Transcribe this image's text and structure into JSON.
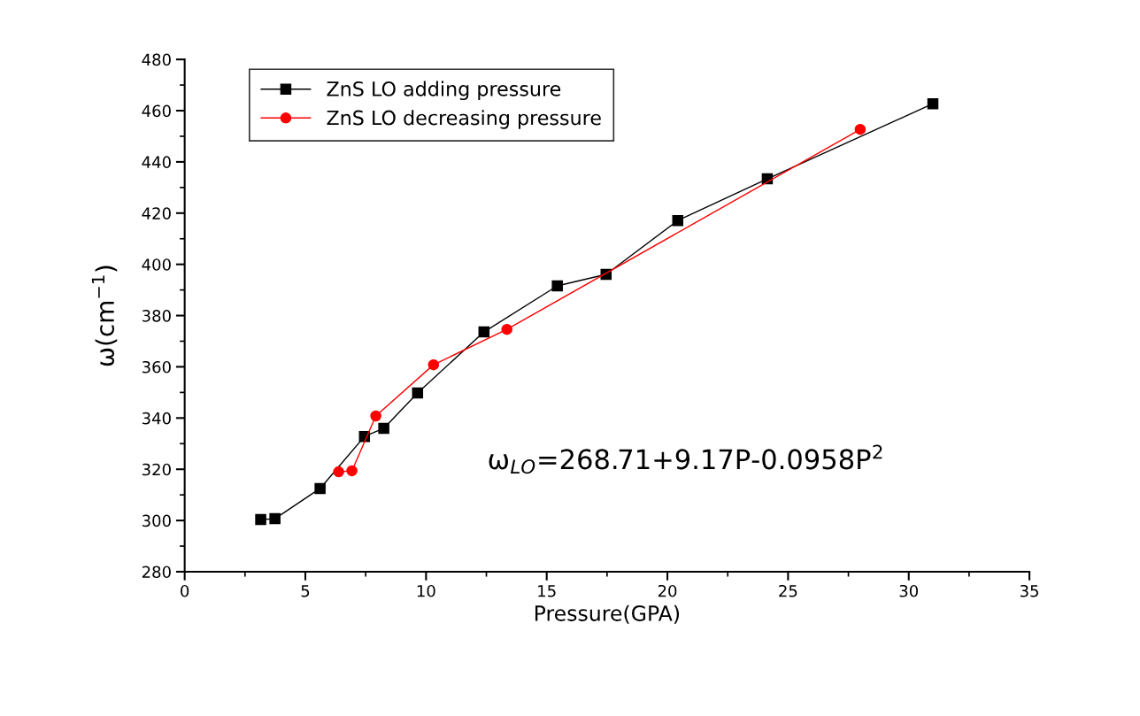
{
  "chart_data": {
    "type": "line",
    "xlabel": "Pressure(GPA)",
    "ylabel": "ω(cm$^{−1}$)",
    "xlim": [
      0,
      35
    ],
    "xticks": [
      0,
      5,
      10,
      15,
      20,
      25,
      30,
      35
    ],
    "ylim": [
      280,
      480
    ],
    "yticks": [
      280,
      300,
      320,
      340,
      360,
      380,
      400,
      420,
      440,
      460,
      480
    ],
    "grid": false,
    "legend": "top left",
    "line_style": "solid",
    "annotations": [
      {
        "text": "ω$_{LO}$=268.71+9.17P-0.0958P$^{2}$"
      }
    ],
    "series": [
      {
        "name": "ZnS LO adding pressure",
        "color": "#000000",
        "marker": "square",
        "x": [
          3.15,
          3.74,
          5.61,
          7.45,
          8.25,
          9.65,
          12.4,
          15.44,
          17.46,
          20.43,
          24.14,
          31.0
        ],
        "values": [
          300.4,
          300.7,
          312.5,
          332.8,
          336.0,
          349.8,
          373.6,
          391.6,
          396.1,
          417.1,
          433.4,
          462.7
        ]
      },
      {
        "name": "ZnS LO decreasing pressure",
        "color": "#ff0000",
        "marker": "circle",
        "x": [
          6.38,
          6.93,
          7.92,
          10.31,
          13.35,
          27.99
        ],
        "values": [
          319.0,
          319.4,
          340.8,
          360.8,
          374.6,
          452.7
        ]
      }
    ]
  }
}
